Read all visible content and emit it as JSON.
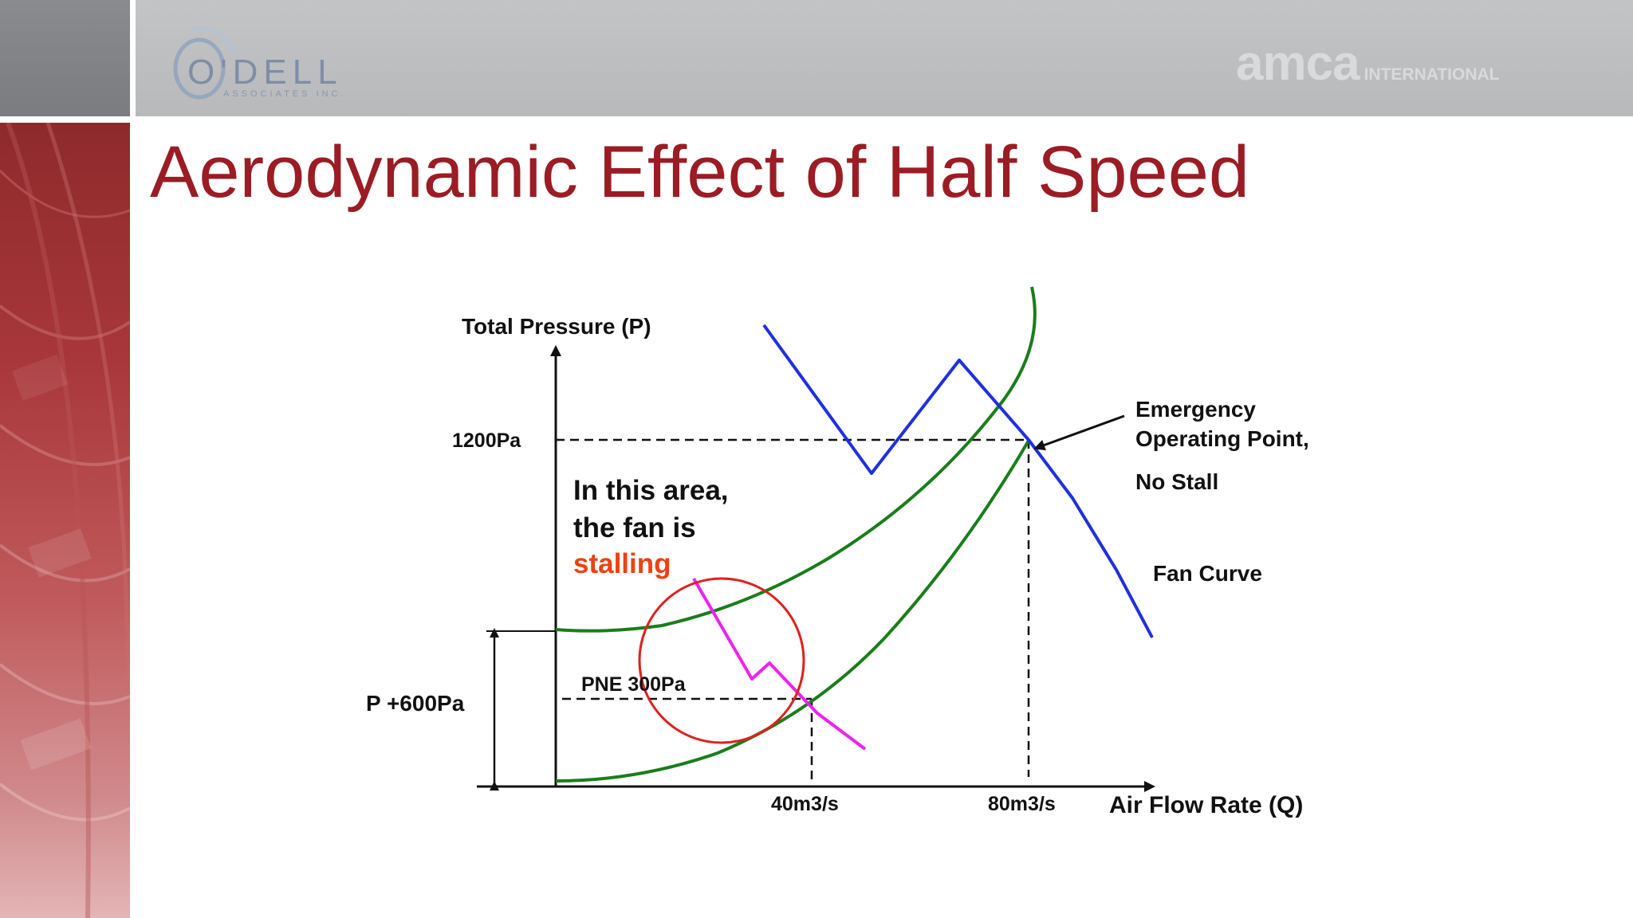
{
  "header": {
    "odell_logo_text": "O'DELL",
    "odell_logo_subtext": "ASSOCIATES INC.",
    "amca_logo_text": "amca",
    "amca_logo_subtext": "INTERNATIONAL"
  },
  "title": "Aerodynamic Effect of Half Speed",
  "diagram": {
    "y_axis_label": "Total Pressure (P)",
    "x_axis_label": "Air Flow Rate (Q)",
    "y_tick_1200": "1200Pa",
    "x_tick_40": "40m3/s",
    "x_tick_80": "80m3/s",
    "pne_label": "PNE 300Pa",
    "p600_label": "P +600Pa",
    "emergency_line1": "Emergency",
    "emergency_line2": "Operating Point,",
    "emergency_line3": "No Stall",
    "fan_curve_label": "Fan Curve",
    "stall_line1": "In this area,",
    "stall_line2": "the fan is",
    "stall_line3": "stalling",
    "colors": {
      "title": "#9b1c24",
      "system_curve": "#1a7d1a",
      "fan_curve": "#1f2fe0",
      "half_speed_curve": "#ee22ee",
      "stall_circle": "#e02020",
      "stalling_text": "#f04010"
    }
  }
}
